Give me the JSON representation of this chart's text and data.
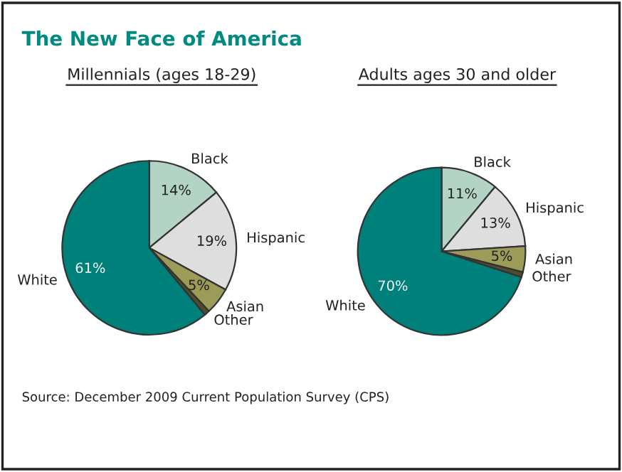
{
  "chart_data": [
    {
      "type": "pie",
      "title": "The New Face of America",
      "subtitle": "Millennials (ages 18-29)",
      "categories": [
        "Black",
        "Hispanic",
        "Asian",
        "Other",
        "White"
      ],
      "values": [
        14,
        19,
        5,
        1,
        61
      ],
      "value_labels": [
        "14%",
        "19%",
        "5%",
        null,
        "61%"
      ],
      "colors": [
        "#b3d4c4",
        "#dedede",
        "#9c9c58",
        "#4e4e2e",
        "#00807a"
      ],
      "annotations": [
        "Source: December 2009 Current Population Survey (CPS)"
      ]
    },
    {
      "type": "pie",
      "subtitle": "Adults ages 30 and older",
      "categories": [
        "Black",
        "Hispanic",
        "Asian",
        "Other",
        "White"
      ],
      "values": [
        11,
        13,
        5,
        1,
        70
      ],
      "value_labels": [
        "11%",
        "13%",
        "5%",
        null,
        "70%"
      ],
      "colors": [
        "#b3d4c4",
        "#dedede",
        "#9c9c58",
        "#4e4e2e",
        "#00807a"
      ]
    }
  ]
}
